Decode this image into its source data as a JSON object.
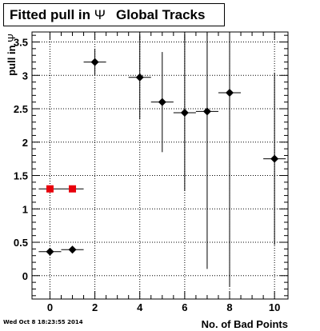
{
  "chart_data": {
    "type": "scatter",
    "title_main": "Fitted pull in ",
    "title_symbol": "Ψ",
    "title_rest": "Global Tracks",
    "xlabel": "No. of Bad Points",
    "ylabel": "pull in ",
    "ylabel_symbol": "Ψ",
    "xlim": [
      -0.8,
      10.6
    ],
    "ylim": [
      -0.35,
      3.65
    ],
    "x_ticks": [
      0,
      2,
      4,
      6,
      8,
      10
    ],
    "y_ticks": [
      0,
      0.5,
      1,
      1.5,
      2,
      2.5,
      3,
      3.5
    ],
    "grid": true,
    "series": [
      {
        "name": "",
        "marker": "diamond",
        "color": "#000000",
        "points": [
          {
            "x": 0,
            "y": 0.36,
            "ex": 0.5,
            "ey": 0.0
          },
          {
            "x": 1,
            "y": 0.39,
            "ex": 0.5,
            "ey": 0.0
          },
          {
            "x": 2,
            "y": 3.2,
            "ex": 0.5,
            "ey": 0.2
          },
          {
            "x": 4,
            "y": 2.97,
            "ex": 0.5,
            "ey": 0.63
          },
          {
            "x": 5,
            "y": 2.6,
            "ex": 0.5,
            "ey": 0.75
          },
          {
            "x": 6,
            "y": 2.44,
            "ex": 0.5,
            "ey": 1.17
          },
          {
            "x": 7,
            "y": 2.46,
            "ex": 0.5,
            "ey": 2.36
          },
          {
            "x": 8,
            "y": 2.74,
            "ex": 0.5,
            "ey": 2.9
          },
          {
            "x": 10,
            "y": 1.75,
            "ex": 0.5,
            "ey": 1.29
          }
        ]
      },
      {
        "name": "",
        "marker": "square",
        "color": "#e8000b",
        "points": [
          {
            "x": 0,
            "y": 1.3,
            "ex": 0.5,
            "ey": 0.0
          },
          {
            "x": 1,
            "y": 1.3,
            "ex": 0.5,
            "ey": 0.0
          }
        ]
      }
    ]
  },
  "footer": "Wed Oct  8 18:23:55 2014"
}
